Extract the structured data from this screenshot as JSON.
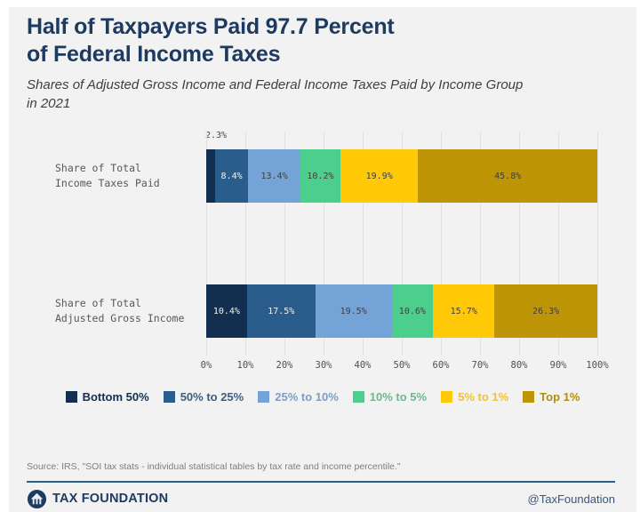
{
  "header": {
    "title": "Half of Taxpayers Paid 97.7 Percent\nof Federal Income Taxes",
    "subtitle": "Shares of Adjusted Gross Income and Federal Income Taxes Paid by Income Group\nin 2021"
  },
  "chart_data": {
    "type": "bar",
    "orientation": "horizontal",
    "stacked": true,
    "categories": [
      "Share of Total\nIncome Taxes Paid",
      "Share of Total\nAdjusted Gross Income"
    ],
    "groups": [
      "Bottom 50%",
      "50% to 25%",
      "25% to 10%",
      "10% to 5%",
      "5% to 1%",
      "Top 1%"
    ],
    "colors": [
      "#132f4f",
      "#2a5c8c",
      "#74a3d8",
      "#4ccf8d",
      "#ffc907",
      "#bd9507"
    ],
    "legend_text_colors": [
      "#152e4d",
      "#3f5e7e",
      "#7e9dc1",
      "#72b591",
      "#edc23d",
      "#b18d10"
    ],
    "series": [
      {
        "category": "Share of Total Income Taxes Paid",
        "values": [
          2.3,
          8.4,
          13.4,
          10.2,
          19.9,
          45.8
        ]
      },
      {
        "category": "Share of Total Adjusted Gross Income",
        "values": [
          10.4,
          17.5,
          19.5,
          10.6,
          15.7,
          26.3
        ]
      }
    ],
    "x_ticks": [
      "0%",
      "10%",
      "20%",
      "30%",
      "40%",
      "50%",
      "60%",
      "70%",
      "80%",
      "90%",
      "100%"
    ],
    "xlim": [
      0,
      100
    ],
    "grid": true,
    "legend_position": "bottom",
    "outside_label": {
      "text": "2.3%",
      "bar": 0,
      "segment": 0
    }
  },
  "footer": {
    "source": "Source: IRS, \"SOI tax stats - individual statistical tables by tax rate and income percentile.\"",
    "brand": "TAX FOUNDATION",
    "handle": "@TaxFoundation"
  }
}
